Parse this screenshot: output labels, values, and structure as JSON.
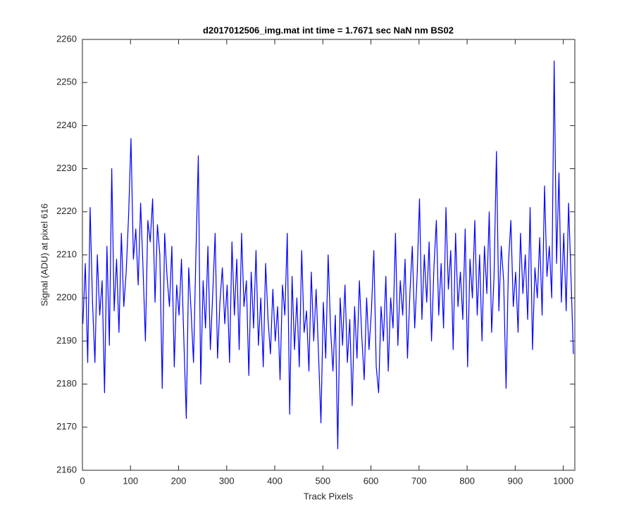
{
  "chart_data": {
    "type": "line",
    "title": "d2017012506_img.mat int time = 1.7671 sec  NaN nm BS02",
    "x_label": "Track Pixels",
    "y_label": "Signal (ADU) at pixel 616",
    "xlim": [
      0,
      1024
    ],
    "ylim": [
      2160,
      2260
    ],
    "xticks": [
      0,
      100,
      200,
      300,
      400,
      500,
      600,
      700,
      800,
      900,
      1000
    ],
    "yticks": [
      2160,
      2170,
      2180,
      2190,
      2200,
      2210,
      2220,
      2230,
      2240,
      2250,
      2260
    ],
    "x": [
      1,
      6,
      11,
      16,
      21,
      26,
      31,
      36,
      41,
      46,
      51,
      56,
      61,
      66,
      71,
      76,
      81,
      86,
      91,
      96,
      101,
      106,
      111,
      116,
      121,
      126,
      131,
      136,
      141,
      146,
      151,
      156,
      161,
      166,
      171,
      176,
      181,
      186,
      191,
      196,
      201,
      206,
      211,
      216,
      221,
      226,
      231,
      236,
      241,
      246,
      251,
      256,
      261,
      266,
      271,
      276,
      281,
      286,
      291,
      296,
      301,
      306,
      311,
      316,
      321,
      326,
      331,
      336,
      341,
      346,
      351,
      356,
      361,
      366,
      371,
      376,
      381,
      386,
      391,
      396,
      401,
      406,
      411,
      416,
      421,
      426,
      431,
      436,
      441,
      446,
      451,
      456,
      461,
      466,
      471,
      476,
      481,
      486,
      491,
      496,
      501,
      506,
      511,
      516,
      521,
      526,
      531,
      536,
      541,
      546,
      551,
      556,
      561,
      566,
      571,
      576,
      581,
      586,
      591,
      596,
      601,
      606,
      611,
      616,
      621,
      626,
      631,
      636,
      641,
      646,
      651,
      656,
      661,
      666,
      671,
      676,
      681,
      686,
      691,
      696,
      701,
      706,
      711,
      716,
      721,
      726,
      731,
      736,
      741,
      746,
      751,
      756,
      761,
      766,
      771,
      776,
      781,
      786,
      791,
      796,
      801,
      806,
      811,
      816,
      821,
      826,
      831,
      836,
      841,
      846,
      851,
      856,
      861,
      866,
      871,
      876,
      881,
      886,
      891,
      896,
      901,
      906,
      911,
      916,
      921,
      926,
      931,
      936,
      941,
      946,
      951,
      956,
      961,
      966,
      971,
      976,
      981,
      986,
      991,
      996,
      1001,
      1006,
      1011,
      1016,
      1021
    ],
    "series": [
      {
        "name": "signal",
        "color": "#0000ff",
        "values": [
          2194,
          2208,
          2185,
          2221,
          2199,
          2185,
          2210,
          2196,
          2204,
          2178,
          2212,
          2189,
          2230,
          2197,
          2209,
          2192,
          2215,
          2198,
          2206,
          2219,
          2237,
          2209,
          2216,
          2203,
          2222,
          2207,
          2190,
          2218,
          2213,
          2223,
          2199,
          2217,
          2210,
          2179,
          2215,
          2205,
          2198,
          2212,
          2184,
          2203,
          2196,
          2209,
          2190,
          2172,
          2207,
          2197,
          2185,
          2210,
          2233,
          2180,
          2204,
          2193,
          2212,
          2188,
          2201,
          2215,
          2186,
          2199,
          2207,
          2194,
          2203,
          2185,
          2213,
          2196,
          2209,
          2188,
          2215,
          2198,
          2204,
          2182,
          2206,
          2193,
          2211,
          2189,
          2200,
          2184,
          2208,
          2195,
          2187,
          2202,
          2190,
          2198,
          2181,
          2203,
          2196,
          2215,
          2173,
          2205,
          2188,
          2200,
          2184,
          2211,
          2192,
          2197,
          2183,
          2206,
          2190,
          2202,
          2187,
          2171,
          2199,
          2186,
          2210,
          2193,
          2183,
          2196,
          2165,
          2200,
          2189,
          2203,
          2185,
          2195,
          2175,
          2198,
          2186,
          2204,
          2191,
          2181,
          2200,
          2188,
          2197,
          2211,
          2184,
          2178,
          2198,
          2190,
          2205,
          2183,
          2200,
          2193,
          2215,
          2189,
          2204,
          2196,
          2209,
          2186,
          2201,
          2212,
          2193,
          2205,
          2223,
          2195,
          2210,
          2199,
          2213,
          2190,
          2207,
          2218,
          2196,
          2208,
          2193,
          2221,
          2202,
          2211,
          2188,
          2215,
          2198,
          2206,
          2195,
          2216,
          2184,
          2209,
          2200,
          2218,
          2196,
          2210,
          2190,
          2212,
          2201,
          2220,
          2192,
          2205,
          2234,
          2197,
          2212,
          2204,
          2179,
          2208,
          2218,
          2198,
          2206,
          2192,
          2215,
          2201,
          2210,
          2195,
          2221,
          2188,
          2207,
          2200,
          2214,
          2196,
          2226,
          2205,
          2212,
          2200,
          2255,
          2208,
          2229,
          2199,
          2215,
          2197,
          2222,
          2205,
          2187
        ]
      }
    ]
  }
}
